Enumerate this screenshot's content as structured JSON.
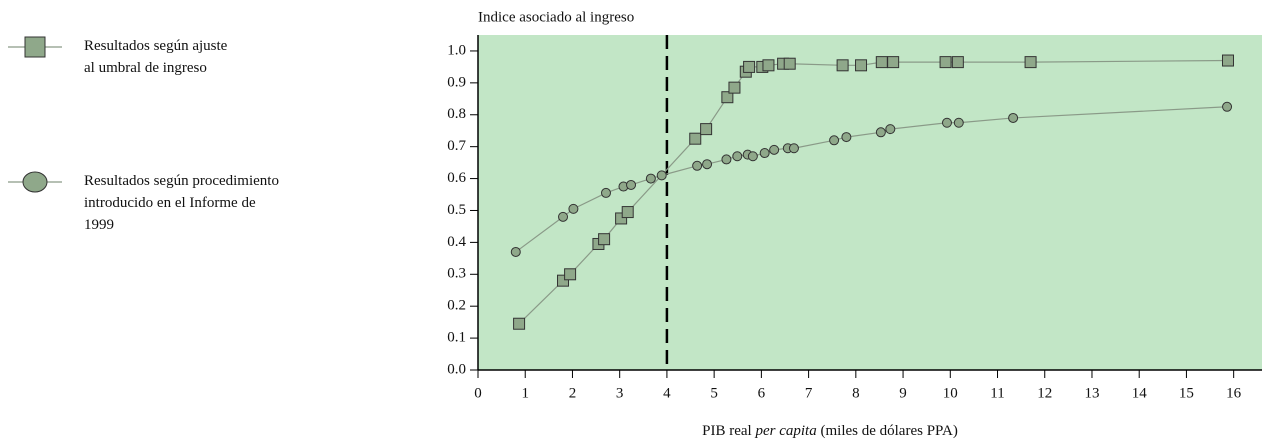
{
  "chart_data": {
    "type": "scatter",
    "ylabel": "Indice asociado al ingreso",
    "xlabel_parts": [
      "PIB real ",
      "per capita",
      " (miles de dólares PPA)"
    ],
    "xlim": [
      0,
      16.6
    ],
    "ylim": [
      0,
      1.05
    ],
    "xticks": [
      0,
      1,
      2,
      3,
      4,
      5,
      6,
      7,
      8,
      9,
      10,
      11,
      12,
      13,
      14,
      15,
      16
    ],
    "yticks": [
      {
        "value": 0,
        "label": "0.0"
      },
      0.1,
      0.2,
      0.3,
      0.4,
      0.5,
      0.6,
      0.7,
      0.8,
      0.9,
      {
        "value": 1,
        "label": "1.0"
      }
    ],
    "reference_x": 4,
    "background": "#c2e6c6",
    "series": [
      {
        "name": [
          "Resultados según ajuste",
          "al  umbral de ingreso"
        ],
        "marker": "square",
        "color": "#8fa88a",
        "x": [
          0.87,
          1.8,
          1.95,
          2.55,
          2.67,
          3.03,
          3.17,
          4.6,
          4.83,
          5.28,
          5.43,
          5.67,
          5.74,
          6.02,
          6.15,
          6.46,
          6.6,
          7.72,
          8.11,
          8.55,
          8.79,
          9.9,
          10.16,
          11.7,
          15.88
        ],
        "values": [
          0.145,
          0.28,
          0.3,
          0.395,
          0.41,
          0.475,
          0.495,
          0.725,
          0.755,
          0.855,
          0.885,
          0.935,
          0.95,
          0.95,
          0.955,
          0.96,
          0.96,
          0.955,
          0.955,
          0.965,
          0.965,
          0.965,
          0.965,
          0.965,
          0.97
        ]
      },
      {
        "name": [
          "Resultados según procedimiento",
          "introducido en el Informe de",
          "1999"
        ],
        "marker": "circle",
        "color": "#8fa88a",
        "x": [
          0.8,
          1.8,
          2.02,
          2.71,
          3.08,
          3.24,
          3.66,
          3.89,
          4.64,
          4.85,
          5.26,
          5.49,
          5.71,
          5.82,
          6.07,
          6.27,
          6.56,
          6.69,
          7.54,
          7.8,
          8.53,
          8.73,
          9.93,
          10.18,
          11.33,
          15.86
        ],
        "values": [
          0.37,
          0.48,
          0.505,
          0.555,
          0.575,
          0.58,
          0.6,
          0.61,
          0.64,
          0.645,
          0.66,
          0.67,
          0.675,
          0.67,
          0.68,
          0.69,
          0.695,
          0.695,
          0.72,
          0.73,
          0.745,
          0.755,
          0.775,
          0.775,
          0.79,
          0.825
        ]
      }
    ]
  }
}
